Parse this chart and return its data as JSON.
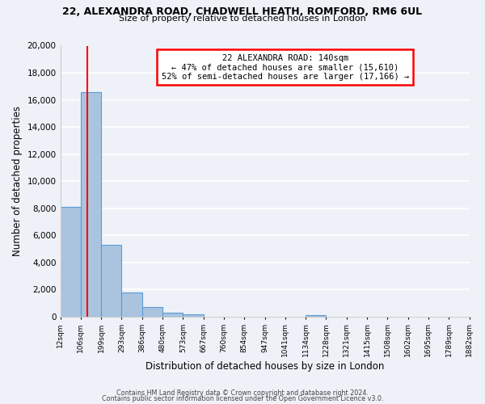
{
  "title1": "22, ALEXANDRA ROAD, CHADWELL HEATH, ROMFORD, RM6 6UL",
  "title2": "Size of property relative to detached houses in London",
  "xlabel": "Distribution of detached houses by size in London",
  "ylabel": "Number of detached properties",
  "bin_labels": [
    "12sqm",
    "106sqm",
    "199sqm",
    "293sqm",
    "386sqm",
    "480sqm",
    "573sqm",
    "667sqm",
    "760sqm",
    "854sqm",
    "947sqm",
    "1041sqm",
    "1134sqm",
    "1228sqm",
    "1321sqm",
    "1415sqm",
    "1508sqm",
    "1602sqm",
    "1695sqm",
    "1789sqm",
    "1882sqm"
  ],
  "bar_heights": [
    8100,
    16550,
    5300,
    1800,
    700,
    300,
    150,
    0,
    0,
    0,
    0,
    0,
    100,
    0,
    0,
    0,
    0,
    0,
    0,
    0
  ],
  "bar_color": "#aac4e0",
  "bar_edge_color": "#5b9bd5",
  "ylim": [
    0,
    20000
  ],
  "yticks": [
    0,
    2000,
    4000,
    6000,
    8000,
    10000,
    12000,
    14000,
    16000,
    18000,
    20000
  ],
  "property_line_x": 1.32,
  "property_label": "22 ALEXANDRA ROAD: 140sqm",
  "annotation_line1": "← 47% of detached houses are smaller (15,610)",
  "annotation_line2": "52% of semi-detached houses are larger (17,166) →",
  "footer1": "Contains HM Land Registry data © Crown copyright and database right 2024.",
  "footer2": "Contains public sector information licensed under the Open Government Licence v3.0.",
  "bg_color": "#eef2f8"
}
